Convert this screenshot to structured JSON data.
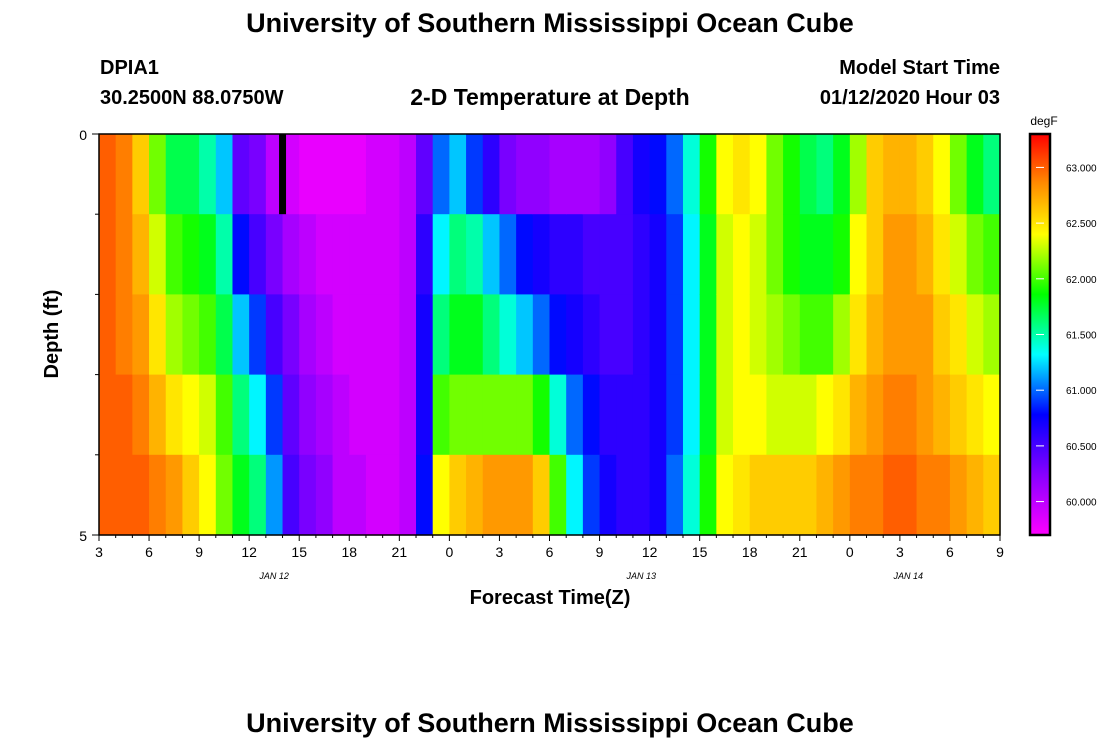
{
  "header": {
    "title": "University of Southern Mississippi Ocean Cube",
    "station_id": "DPIA1",
    "station_location": "30.2500N 88.0750W",
    "subtitle": "2-D Temperature at Depth",
    "model_start_label": "Model Start Time",
    "model_start_value": "01/12/2020 Hour 03"
  },
  "footer": {
    "title": "University of Southern Mississippi Ocean Cube"
  },
  "chart_data": {
    "type": "heatmap",
    "title": "2-D Temperature at Depth",
    "xlabel": "Forecast Time(Z)",
    "ylabel": "Depth (ft)",
    "x_tick_labels": [
      "3",
      "6",
      "9",
      "12",
      "15",
      "18",
      "21",
      "0",
      "3",
      "6",
      "9",
      "12",
      "15",
      "18",
      "21",
      "0",
      "3",
      "6",
      "9"
    ],
    "date_labels": [
      {
        "label": "JAN 12",
        "hour_index": 10.5
      },
      {
        "label": "JAN 13",
        "hour_index": 32.5
      },
      {
        "label": "JAN 14",
        "hour_index": 48.5
      }
    ],
    "x_range_hours": [
      0,
      54
    ],
    "y_range": [
      0,
      5
    ],
    "y_tick_labels": [
      "0",
      "5"
    ],
    "depth_rows": 5,
    "colorbar": {
      "unit": "degF",
      "min": 59.7,
      "max": 63.3,
      "tick_labels": [
        "60.000",
        "60.500",
        "61.000",
        "61.500",
        "62.000",
        "62.500",
        "63.000"
      ],
      "tick_values": [
        60.0,
        60.5,
        61.0,
        61.5,
        62.0,
        62.5,
        63.0
      ]
    },
    "missing_marker": {
      "hour": 11,
      "depth_row": 0
    },
    "columns": [
      [
        63.0,
        63.0,
        63.0,
        63.0,
        63.0
      ],
      [
        62.9,
        62.9,
        62.9,
        63.0,
        63.0
      ],
      [
        62.6,
        62.7,
        62.8,
        62.9,
        63.0
      ],
      [
        62.1,
        62.3,
        62.5,
        62.7,
        62.9
      ],
      [
        61.7,
        62.0,
        62.2,
        62.5,
        62.8
      ],
      [
        61.7,
        61.9,
        62.1,
        62.4,
        62.6
      ],
      [
        61.5,
        61.8,
        62.0,
        62.3,
        62.4
      ],
      [
        61.2,
        61.5,
        61.7,
        62.0,
        62.1
      ],
      [
        60.4,
        60.8,
        61.2,
        61.6,
        61.8
      ],
      [
        60.3,
        60.5,
        60.9,
        61.3,
        61.6
      ],
      [
        60.0,
        60.3,
        60.5,
        60.9,
        61.1
      ],
      [
        59.9,
        60.1,
        60.3,
        60.4,
        60.5
      ],
      [
        59.8,
        60.0,
        60.1,
        60.2,
        60.3
      ],
      [
        59.8,
        59.9,
        60.0,
        60.1,
        60.2
      ],
      [
        59.8,
        59.9,
        59.9,
        60.0,
        60.0
      ],
      [
        59.8,
        59.9,
        59.9,
        59.9,
        60.0
      ],
      [
        59.9,
        59.9,
        59.9,
        59.9,
        59.9
      ],
      [
        59.9,
        59.9,
        59.9,
        59.9,
        59.9
      ],
      [
        60.0,
        60.0,
        60.0,
        60.0,
        60.0
      ],
      [
        60.4,
        60.6,
        60.7,
        60.7,
        60.8
      ],
      [
        61.0,
        61.3,
        61.6,
        62.0,
        62.4
      ],
      [
        61.2,
        61.6,
        61.8,
        62.1,
        62.6
      ],
      [
        60.9,
        61.5,
        61.8,
        62.1,
        62.7
      ],
      [
        60.6,
        61.2,
        61.6,
        62.1,
        62.8
      ],
      [
        60.3,
        61.0,
        61.4,
        62.1,
        62.8
      ],
      [
        60.2,
        60.8,
        61.2,
        62.1,
        62.8
      ],
      [
        60.2,
        60.7,
        61.0,
        61.9,
        62.6
      ],
      [
        60.1,
        60.6,
        60.8,
        61.4,
        62.0
      ],
      [
        60.1,
        60.6,
        60.7,
        61.0,
        61.3
      ],
      [
        60.1,
        60.5,
        60.6,
        60.8,
        60.9
      ],
      [
        60.2,
        60.5,
        60.5,
        60.6,
        60.7
      ],
      [
        60.5,
        60.5,
        60.5,
        60.6,
        60.6
      ],
      [
        60.7,
        60.6,
        60.6,
        60.6,
        60.6
      ],
      [
        60.8,
        60.7,
        60.7,
        60.7,
        60.7
      ],
      [
        61.0,
        60.9,
        60.9,
        60.9,
        61.0
      ],
      [
        61.4,
        61.3,
        61.3,
        61.3,
        61.4
      ],
      [
        61.9,
        61.8,
        61.8,
        61.8,
        61.9
      ],
      [
        62.4,
        62.3,
        62.3,
        62.3,
        62.4
      ],
      [
        62.5,
        62.4,
        62.4,
        62.4,
        62.5
      ],
      [
        62.4,
        62.3,
        62.3,
        62.4,
        62.6
      ],
      [
        62.1,
        62.1,
        62.2,
        62.3,
        62.6
      ],
      [
        61.9,
        61.9,
        62.1,
        62.3,
        62.6
      ],
      [
        61.7,
        61.8,
        62.0,
        62.3,
        62.6
      ],
      [
        61.6,
        61.8,
        62.0,
        62.4,
        62.7
      ],
      [
        61.8,
        61.9,
        62.2,
        62.5,
        62.8
      ],
      [
        62.2,
        62.4,
        62.5,
        62.7,
        62.9
      ],
      [
        62.6,
        62.6,
        62.7,
        62.8,
        62.9
      ],
      [
        62.7,
        62.8,
        62.8,
        62.9,
        63.0
      ],
      [
        62.7,
        62.8,
        62.8,
        62.9,
        63.0
      ],
      [
        62.6,
        62.7,
        62.8,
        62.8,
        62.9
      ],
      [
        62.4,
        62.5,
        62.6,
        62.7,
        62.9
      ],
      [
        62.1,
        62.3,
        62.5,
        62.6,
        62.8
      ],
      [
        61.8,
        62.1,
        62.3,
        62.5,
        62.7
      ],
      [
        61.6,
        62.0,
        62.2,
        62.4,
        62.6
      ]
    ]
  }
}
